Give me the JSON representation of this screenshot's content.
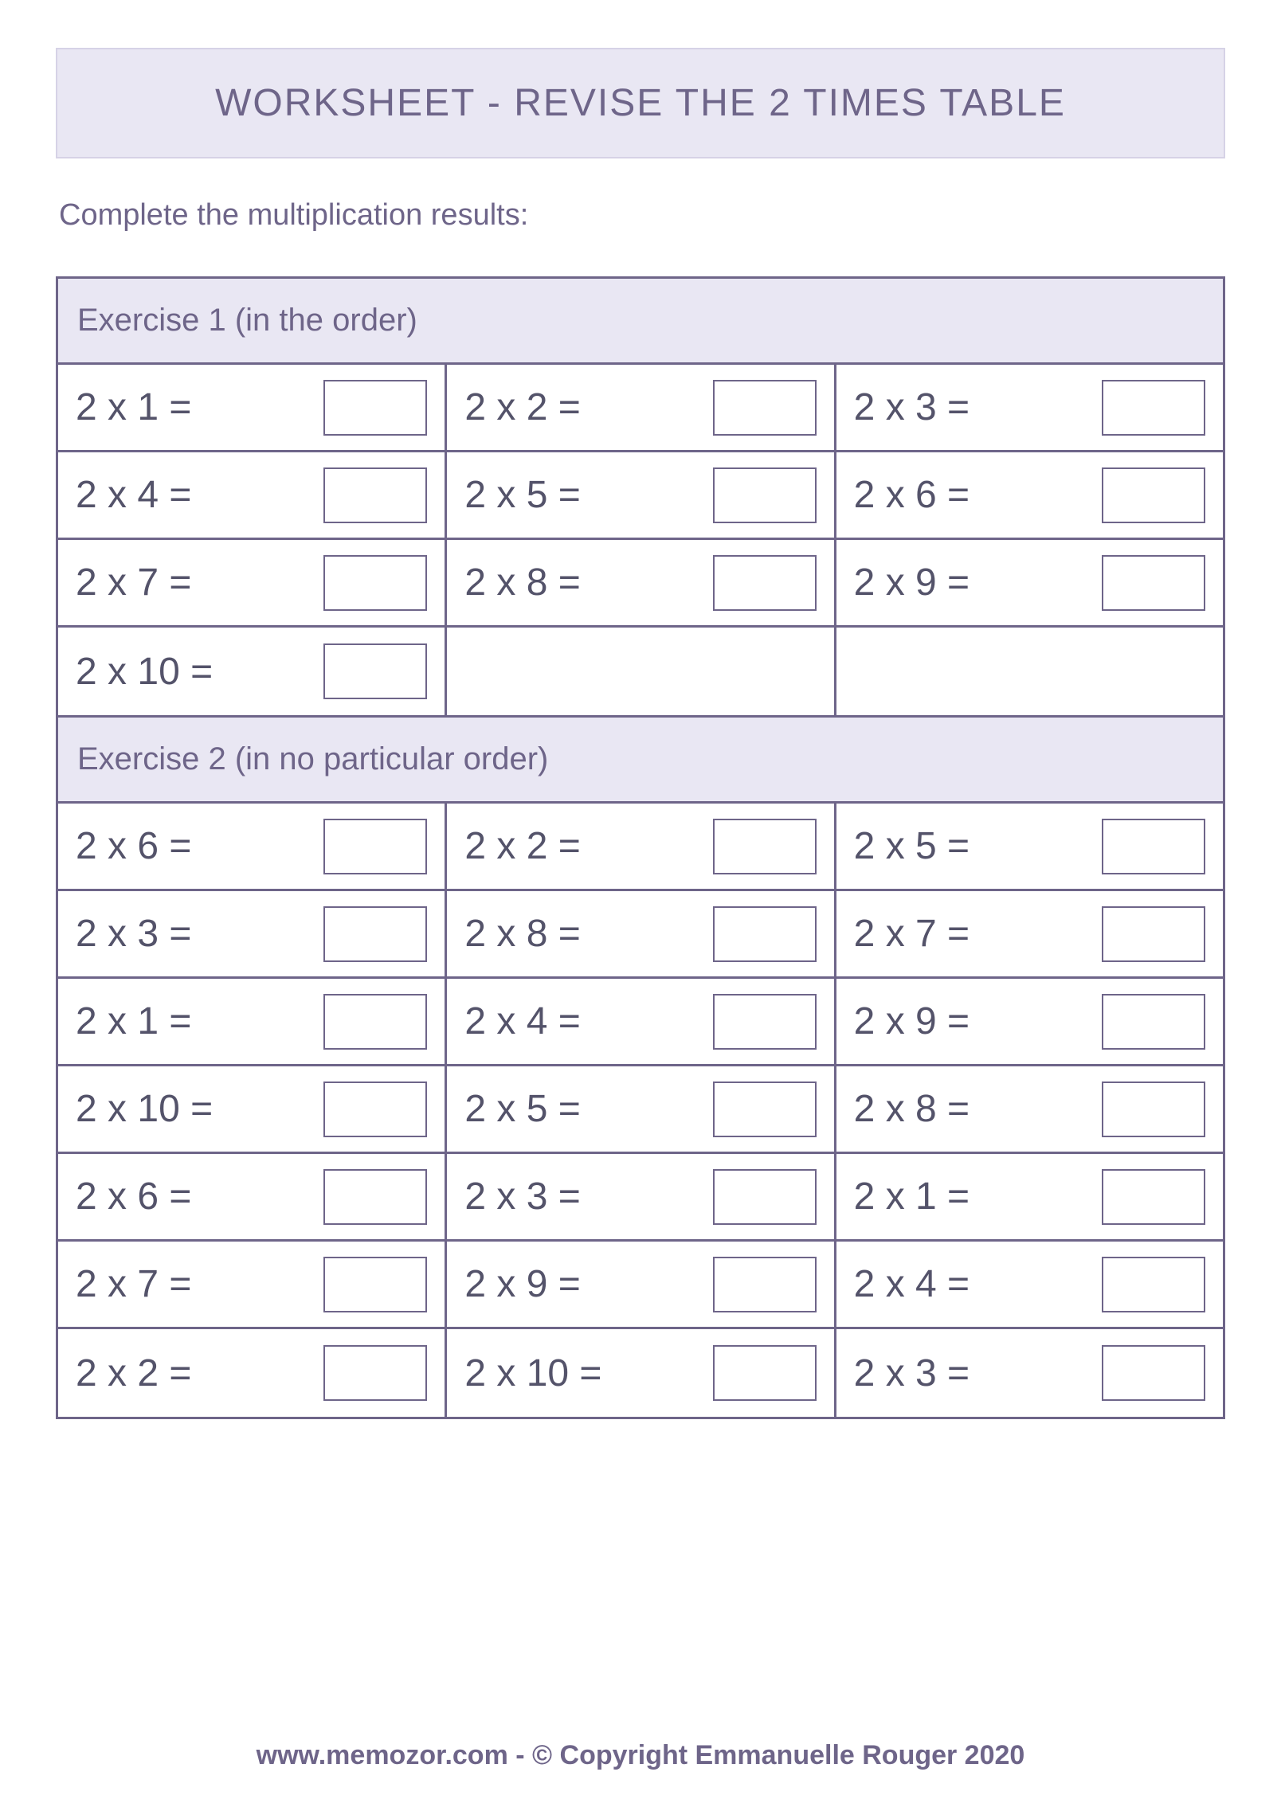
{
  "colors": {
    "border": "#6e6589",
    "header_bg": "#e9e7f3",
    "header_border": "#d6d2e6",
    "text_primary": "#6e6589",
    "text_problem": "#54536a",
    "background": "#ffffff"
  },
  "title": "WORKSHEET - REVISE THE 2 TIMES TABLE",
  "instruction": "Complete the multiplication results:",
  "exercise1": {
    "title": "Exercise 1 (in the order)",
    "problems": [
      "2 x 1 =",
      "2 x 2 =",
      "2 x 3 =",
      "2 x 4 =",
      "2 x 5 =",
      "2 x 6 =",
      "2 x 7 =",
      "2 x 8 =",
      "2 x 9 =",
      "2 x 10 =",
      "",
      ""
    ]
  },
  "exercise2": {
    "title": "Exercise 2 (in no particular order)",
    "problems": [
      "2 x 6 =",
      "2 x 2 =",
      "2 x 5 =",
      "2 x 3 =",
      "2 x 8 =",
      "2 x 7 =",
      "2 x 1 =",
      "2 x 4 =",
      "2 x 9 =",
      "2 x 10 =",
      "2 x 5 =",
      "2 x 8 =",
      "2 x 6 =",
      "2 x 3 =",
      "2 x 1 =",
      "2 x 7 =",
      "2 x 9 =",
      "2 x 4 =",
      "2 x 2 =",
      "2 x 10 =",
      "2 x 3 ="
    ]
  },
  "footer": "www.memozor.com - © Copyright Emmanuelle Rouger 2020"
}
